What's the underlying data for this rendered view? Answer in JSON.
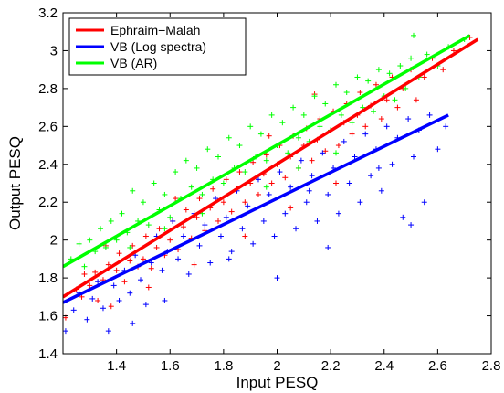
{
  "chart_data": {
    "type": "scatter",
    "title": "",
    "xlabel": "Input PESQ",
    "ylabel": "Output PESQ",
    "xlim": [
      1.2,
      2.8
    ],
    "ylim": [
      1.4,
      3.2
    ],
    "xticks": [
      1.4,
      1.6,
      1.8,
      2,
      2.2,
      2.4,
      2.6,
      2.8
    ],
    "yticks": [
      1.4,
      1.6,
      1.8,
      2,
      2.2,
      2.4,
      2.6,
      2.8,
      3,
      3.2
    ],
    "xtick_labels": [
      "1.4",
      "1.6",
      "1.8",
      "2",
      "2.2",
      "2.4",
      "2.6",
      "2.8"
    ],
    "ytick_labels": [
      "1.4",
      "1.6",
      "1.8",
      "2",
      "2.2",
      "2.4",
      "2.6",
      "2.8",
      "3",
      "3.2"
    ],
    "grid": false,
    "legend_position": "top-left",
    "marker": "+",
    "series": [
      {
        "name": "Ephraim−Malah",
        "color": "#ff0000",
        "fit_line": {
          "x": [
            1.2,
            2.75
          ],
          "y": [
            1.7,
            3.06
          ]
        },
        "points": [
          [
            1.21,
            1.59
          ],
          [
            1.25,
            1.74
          ],
          [
            1.27,
            1.7
          ],
          [
            1.28,
            1.82
          ],
          [
            1.3,
            1.76
          ],
          [
            1.32,
            1.83
          ],
          [
            1.33,
            1.68
          ],
          [
            1.35,
            1.79
          ],
          [
            1.37,
            1.87
          ],
          [
            1.38,
            1.65
          ],
          [
            1.4,
            1.84
          ],
          [
            1.41,
            1.93
          ],
          [
            1.43,
            1.78
          ],
          [
            1.45,
            1.89
          ],
          [
            1.46,
            1.97
          ],
          [
            1.48,
            1.86
          ],
          [
            1.5,
            1.9
          ],
          [
            1.51,
            2.02
          ],
          [
            1.53,
            1.85
          ],
          [
            1.55,
            1.96
          ],
          [
            1.56,
            2.06
          ],
          [
            1.58,
            1.92
          ],
          [
            1.6,
            2.0
          ],
          [
            1.61,
            2.1
          ],
          [
            1.63,
            1.95
          ],
          [
            1.65,
            2.07
          ],
          [
            1.66,
            2.16
          ],
          [
            1.68,
            2.01
          ],
          [
            1.7,
            2.12
          ],
          [
            1.71,
            2.22
          ],
          [
            1.73,
            2.05
          ],
          [
            1.75,
            2.17
          ],
          [
            1.76,
            2.27
          ],
          [
            1.78,
            2.1
          ],
          [
            1.8,
            2.2
          ],
          [
            1.81,
            2.32
          ],
          [
            1.83,
            2.15
          ],
          [
            1.85,
            2.27
          ],
          [
            1.86,
            2.36
          ],
          [
            1.88,
            2.2
          ],
          [
            1.9,
            2.3
          ],
          [
            1.91,
            2.41
          ],
          [
            1.93,
            2.24
          ],
          [
            1.95,
            2.35
          ],
          [
            1.96,
            2.45
          ],
          [
            1.98,
            2.3
          ],
          [
            2.0,
            2.4
          ],
          [
            2.01,
            2.5
          ],
          [
            2.03,
            2.33
          ],
          [
            2.05,
            2.44
          ],
          [
            2.06,
            2.55
          ],
          [
            2.08,
            2.38
          ],
          [
            2.1,
            2.5
          ],
          [
            2.11,
            2.59
          ],
          [
            2.13,
            2.42
          ],
          [
            2.15,
            2.53
          ],
          [
            2.16,
            2.64
          ],
          [
            2.18,
            2.47
          ],
          [
            2.2,
            2.58
          ],
          [
            2.21,
            2.68
          ],
          [
            2.23,
            2.5
          ],
          [
            2.25,
            2.62
          ],
          [
            2.26,
            2.72
          ],
          [
            2.28,
            2.56
          ],
          [
            2.3,
            2.66
          ],
          [
            2.31,
            2.78
          ],
          [
            2.33,
            2.6
          ],
          [
            2.35,
            2.71
          ],
          [
            2.37,
            2.82
          ],
          [
            2.39,
            2.64
          ],
          [
            2.41,
            2.74
          ],
          [
            2.43,
            2.86
          ],
          [
            2.45,
            2.7
          ],
          [
            2.47,
            2.8
          ],
          [
            2.5,
            2.9
          ],
          [
            2.52,
            2.74
          ],
          [
            2.55,
            2.86
          ],
          [
            2.58,
            2.96
          ],
          [
            2.62,
            2.9
          ],
          [
            2.66,
            3.0
          ],
          [
            2.72,
            3.07
          ],
          [
            1.52,
            1.75
          ],
          [
            1.69,
            1.87
          ],
          [
            1.88,
            2.02
          ],
          [
            2.05,
            2.17
          ],
          [
            2.22,
            2.3
          ],
          [
            1.62,
            2.22
          ],
          [
            1.97,
            2.55
          ],
          [
            2.14,
            2.77
          ],
          [
            1.36,
            1.97
          ]
        ]
      },
      {
        "name": "VB (Log spectra)",
        "color": "#0000ff",
        "fit_line": {
          "x": [
            1.2,
            2.64
          ],
          "y": [
            1.67,
            2.66
          ]
        },
        "points": [
          [
            1.21,
            1.52
          ],
          [
            1.24,
            1.63
          ],
          [
            1.26,
            1.72
          ],
          [
            1.29,
            1.58
          ],
          [
            1.31,
            1.69
          ],
          [
            1.33,
            1.78
          ],
          [
            1.35,
            1.64
          ],
          [
            1.37,
            1.52
          ],
          [
            1.39,
            1.76
          ],
          [
            1.41,
            1.68
          ],
          [
            1.43,
            1.84
          ],
          [
            1.45,
            1.72
          ],
          [
            1.47,
            1.92
          ],
          [
            1.49,
            1.79
          ],
          [
            1.51,
            1.66
          ],
          [
            1.53,
            1.88
          ],
          [
            1.55,
            2.02
          ],
          [
            1.57,
            1.84
          ],
          [
            1.59,
            1.94
          ],
          [
            1.61,
            2.1
          ],
          [
            1.63,
            1.9
          ],
          [
            1.65,
            2.02
          ],
          [
            1.67,
            1.82
          ],
          [
            1.69,
            2.14
          ],
          [
            1.71,
            1.97
          ],
          [
            1.73,
            2.08
          ],
          [
            1.75,
            1.88
          ],
          [
            1.77,
            2.22
          ],
          [
            1.79,
            2.02
          ],
          [
            1.81,
            2.12
          ],
          [
            1.83,
            1.94
          ],
          [
            1.85,
            2.26
          ],
          [
            1.87,
            2.06
          ],
          [
            1.89,
            2.18
          ],
          [
            1.91,
            1.98
          ],
          [
            1.93,
            2.32
          ],
          [
            1.95,
            2.1
          ],
          [
            1.97,
            2.24
          ],
          [
            1.99,
            2.02
          ],
          [
            2.01,
            2.36
          ],
          [
            2.03,
            2.14
          ],
          [
            2.05,
            2.28
          ],
          [
            2.07,
            2.06
          ],
          [
            2.09,
            2.42
          ],
          [
            2.11,
            2.2
          ],
          [
            2.13,
            2.34
          ],
          [
            2.15,
            2.1
          ],
          [
            2.17,
            2.46
          ],
          [
            2.19,
            2.24
          ],
          [
            2.21,
            2.38
          ],
          [
            2.23,
            2.14
          ],
          [
            2.25,
            2.52
          ],
          [
            2.27,
            2.3
          ],
          [
            2.29,
            2.44
          ],
          [
            2.31,
            2.2
          ],
          [
            2.33,
            2.56
          ],
          [
            2.35,
            2.34
          ],
          [
            2.37,
            2.48
          ],
          [
            2.39,
            2.26
          ],
          [
            2.41,
            2.6
          ],
          [
            2.43,
            2.4
          ],
          [
            2.45,
            2.54
          ],
          [
            2.47,
            2.12
          ],
          [
            2.49,
            2.64
          ],
          [
            2.51,
            2.44
          ],
          [
            2.53,
            2.58
          ],
          [
            2.55,
            2.2
          ],
          [
            2.57,
            2.66
          ],
          [
            2.6,
            2.48
          ],
          [
            2.63,
            2.6
          ],
          [
            2.0,
            1.8
          ],
          [
            2.19,
            1.96
          ],
          [
            2.5,
            2.08
          ],
          [
            1.46,
            1.56
          ],
          [
            1.58,
            1.68
          ],
          [
            1.82,
            1.9
          ],
          [
            2.12,
            2.26
          ],
          [
            2.38,
            2.38
          ]
        ]
      },
      {
        "name": "VB (AR)",
        "color": "#00ff00",
        "fit_line": {
          "x": [
            1.2,
            2.72
          ],
          "y": [
            1.86,
            3.08
          ]
        },
        "points": [
          [
            1.23,
            1.9
          ],
          [
            1.26,
            1.98
          ],
          [
            1.28,
            1.86
          ],
          [
            1.3,
            2.0
          ],
          [
            1.32,
            1.94
          ],
          [
            1.34,
            2.06
          ],
          [
            1.36,
            1.96
          ],
          [
            1.38,
            2.1
          ],
          [
            1.4,
            2.0
          ],
          [
            1.42,
            2.14
          ],
          [
            1.44,
            2.04
          ],
          [
            1.46,
            2.26
          ],
          [
            1.48,
            2.1
          ],
          [
            1.5,
            2.2
          ],
          [
            1.52,
            2.08
          ],
          [
            1.54,
            2.3
          ],
          [
            1.56,
            2.16
          ],
          [
            1.58,
            2.24
          ],
          [
            1.6,
            2.12
          ],
          [
            1.62,
            2.36
          ],
          [
            1.64,
            2.22
          ],
          [
            1.66,
            2.42
          ],
          [
            1.68,
            2.28
          ],
          [
            1.7,
            2.38
          ],
          [
            1.72,
            2.24
          ],
          [
            1.74,
            2.48
          ],
          [
            1.76,
            2.32
          ],
          [
            1.78,
            2.44
          ],
          [
            1.8,
            2.3
          ],
          [
            1.82,
            2.54
          ],
          [
            1.84,
            2.38
          ],
          [
            1.86,
            2.5
          ],
          [
            1.88,
            2.36
          ],
          [
            1.9,
            2.6
          ],
          [
            1.92,
            2.44
          ],
          [
            1.94,
            2.56
          ],
          [
            1.96,
            2.42
          ],
          [
            1.98,
            2.66
          ],
          [
            2.0,
            2.5
          ],
          [
            2.02,
            2.62
          ],
          [
            2.04,
            2.46
          ],
          [
            2.06,
            2.7
          ],
          [
            2.08,
            2.54
          ],
          [
            2.1,
            2.66
          ],
          [
            2.12,
            2.52
          ],
          [
            2.14,
            2.76
          ],
          [
            2.16,
            2.6
          ],
          [
            2.18,
            2.72
          ],
          [
            2.2,
            2.58
          ],
          [
            2.22,
            2.82
          ],
          [
            2.24,
            2.66
          ],
          [
            2.26,
            2.78
          ],
          [
            2.28,
            2.62
          ],
          [
            2.3,
            2.86
          ],
          [
            2.32,
            2.7
          ],
          [
            2.34,
            2.84
          ],
          [
            2.36,
            2.68
          ],
          [
            2.38,
            2.9
          ],
          [
            2.4,
            2.76
          ],
          [
            2.42,
            2.88
          ],
          [
            2.44,
            2.74
          ],
          [
            2.46,
            2.92
          ],
          [
            2.48,
            2.8
          ],
          [
            2.5,
            2.96
          ],
          [
            2.53,
            2.86
          ],
          [
            2.56,
            2.98
          ],
          [
            2.6,
            2.92
          ],
          [
            2.64,
            3.02
          ],
          [
            2.7,
            3.06
          ],
          [
            2.51,
            3.08
          ],
          [
            1.58,
            2.06
          ],
          [
            1.72,
            2.14
          ],
          [
            1.96,
            2.28
          ],
          [
            2.08,
            2.38
          ],
          [
            2.22,
            2.46
          ],
          [
            1.45,
            1.96
          ]
        ]
      }
    ]
  }
}
